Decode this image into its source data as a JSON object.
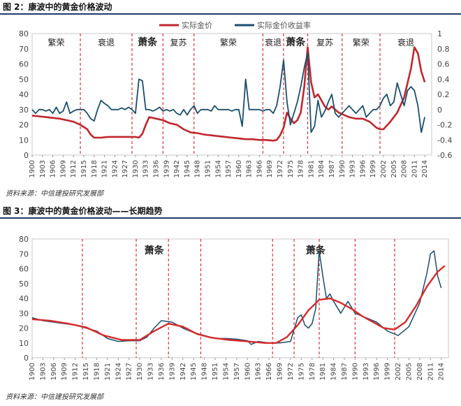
{
  "figure2": {
    "title": "图 2：康波中的黄金价格波动",
    "source": "资料来源：中信建投研究发展部"
  },
  "figure3": {
    "title": "图 3：康波中的黄金价格波动——长期趋势",
    "source": "资料来源：中信建投研究发展部"
  },
  "chart_data": [
    {
      "type": "line",
      "title": "",
      "legend_position": "top",
      "grid": false,
      "xlim": [
        1900,
        2016
      ],
      "ylim": [
        0,
        80
      ],
      "y2lim": [
        -0.6,
        1.0
      ],
      "x_ticks": [
        1900,
        1903,
        1906,
        1909,
        1912,
        1915,
        1918,
        1921,
        1924,
        1927,
        1930,
        1933,
        1936,
        1939,
        1942,
        1945,
        1948,
        1951,
        1954,
        1957,
        1960,
        1963,
        1966,
        1969,
        1972,
        1975,
        1978,
        1981,
        1984,
        1987,
        1990,
        1993,
        1996,
        1999,
        2002,
        2005,
        2008,
        2011,
        2014
      ],
      "y_ticks": [
        0,
        10,
        20,
        30,
        40,
        50,
        60,
        70,
        80
      ],
      "y2_ticks": [
        -0.6,
        -0.4,
        -0.2,
        0,
        0.2,
        0.4,
        0.6,
        0.8,
        1
      ],
      "colors": {
        "price": "#c0272d",
        "return": "#1a4e6e",
        "divider": "#d33"
      },
      "dividers": [
        1914,
        1929,
        1938,
        1947,
        1967,
        1973,
        1980,
        1990,
        2001
      ],
      "phases": [
        {
          "label": "繁荣",
          "x": 1907,
          "bold": false
        },
        {
          "label": "衰退",
          "x": 1921.5,
          "bold": false
        },
        {
          "label": "萧条",
          "x": 1933.5,
          "bold": true
        },
        {
          "label": "复苏",
          "x": 1942.5,
          "bold": false
        },
        {
          "label": "繁荣",
          "x": 1957,
          "bold": false
        },
        {
          "label": "衰退",
          "x": 1970,
          "bold": false
        },
        {
          "label": "萧条",
          "x": 1976.5,
          "bold": true
        },
        {
          "label": "复苏",
          "x": 1985,
          "bold": false
        },
        {
          "label": "繁荣",
          "x": 1995.5,
          "bold": false
        },
        {
          "label": "衰退",
          "x": 2008.5,
          "bold": false
        }
      ],
      "series": [
        {
          "name": "实际金价",
          "axis": "left",
          "x": [
            1900,
            1902,
            1904,
            1906,
            1908,
            1910,
            1912,
            1914,
            1916,
            1917,
            1918,
            1920,
            1922,
            1924,
            1926,
            1928,
            1930,
            1931,
            1932,
            1933,
            1934,
            1936,
            1938,
            1940,
            1942,
            1944,
            1946,
            1948,
            1950,
            1952,
            1954,
            1956,
            1958,
            1960,
            1962,
            1964,
            1966,
            1968,
            1970,
            1971,
            1972,
            1973,
            1974,
            1975,
            1976,
            1977,
            1978,
            1979,
            1980,
            1981,
            1982,
            1983,
            1984,
            1985,
            1986,
            1987,
            1988,
            1989,
            1990,
            1992,
            1994,
            1996,
            1998,
            2000,
            2001,
            2002,
            2004,
            2006,
            2008,
            2010,
            2011,
            2012,
            2013,
            2014
          ],
          "values": [
            26,
            25.5,
            25,
            24.5,
            24,
            23,
            22,
            20,
            17,
            13.5,
            11.5,
            11.5,
            12,
            12,
            12,
            12,
            12,
            11.5,
            14,
            20,
            25,
            24,
            23,
            21,
            20,
            17,
            15,
            14.5,
            13.5,
            13,
            12.5,
            12,
            11.5,
            11,
            10.5,
            10.5,
            10,
            10,
            9.5,
            10,
            13,
            18,
            28,
            24,
            21,
            23,
            28,
            45,
            71,
            48,
            38,
            40,
            36,
            32,
            30,
            32,
            30,
            28,
            27,
            25,
            24,
            24,
            22,
            18,
            17,
            17,
            22,
            28,
            38,
            57,
            71,
            67,
            55,
            48
          ]
        },
        {
          "name": "实际金价收益率",
          "axis": "right",
          "x": [
            1900,
            1901,
            1902,
            1903,
            1904,
            1905,
            1906,
            1907,
            1908,
            1909,
            1910,
            1911,
            1912,
            1913,
            1914,
            1915,
            1916,
            1917,
            1918,
            1919,
            1920,
            1921,
            1922,
            1923,
            1924,
            1925,
            1926,
            1927,
            1928,
            1929,
            1930,
            1931,
            1932,
            1933,
            1934,
            1935,
            1936,
            1937,
            1938,
            1939,
            1940,
            1941,
            1942,
            1943,
            1944,
            1945,
            1946,
            1947,
            1948,
            1949,
            1950,
            1951,
            1952,
            1953,
            1954,
            1955,
            1956,
            1957,
            1958,
            1959,
            1960,
            1961,
            1962,
            1963,
            1964,
            1965,
            1966,
            1967,
            1968,
            1969,
            1970,
            1971,
            1972,
            1973,
            1974,
            1975,
            1976,
            1977,
            1978,
            1979,
            1980,
            1981,
            1982,
            1983,
            1984,
            1985,
            1986,
            1987,
            1988,
            1989,
            1990,
            1991,
            1992,
            1993,
            1994,
            1995,
            1996,
            1997,
            1998,
            1999,
            2000,
            2001,
            2002,
            2003,
            2004,
            2005,
            2006,
            2007,
            2008,
            2009,
            2010,
            2011,
            2012,
            2013,
            2014
          ],
          "values": [
            0,
            -0.05,
            0,
            0,
            -0.02,
            0,
            -0.05,
            0.03,
            -0.05,
            -0.02,
            0.1,
            -0.05,
            -0.02,
            0,
            0,
            0,
            -0.05,
            -0.12,
            -0.15,
            0,
            0.12,
            0.08,
            0.05,
            0,
            0,
            0,
            0.02,
            0,
            0.03,
            0,
            -0.05,
            0.4,
            0.38,
            0,
            0,
            -0.02,
            0,
            0.03,
            -0.02,
            0,
            -0.02,
            0,
            -0.05,
            -0.07,
            0,
            -0.07,
            0,
            0.05,
            -0.05,
            0,
            0,
            0,
            -0.02,
            0.05,
            0,
            0,
            0,
            0,
            -0.02,
            0,
            0,
            -0.22,
            0.4,
            0,
            0,
            0,
            0,
            -0.02,
            0,
            0,
            -0.05,
            0.05,
            0.3,
            0.65,
            0.1,
            -0.2,
            -0.05,
            0.1,
            0.3,
            0.55,
            0.75,
            -0.3,
            -0.22,
            0.12,
            -0.1,
            -0.02,
            0.1,
            0.2,
            -0.05,
            -0.1,
            -0.05,
            0,
            0.05,
            0,
            -0.05,
            0,
            0.05,
            -0.1,
            -0.05,
            0,
            0,
            0.05,
            0.15,
            0.2,
            0.05,
            0.1,
            0.35,
            0.2,
            0.05,
            0.25,
            0.3,
            0.25,
            0.05,
            -0.3,
            -0.1
          ]
        }
      ]
    },
    {
      "type": "line",
      "title": "",
      "legend_position": "none",
      "grid": false,
      "xlim": [
        1900,
        2016
      ],
      "ylim": [
        0,
        80
      ],
      "x_ticks": [
        1900,
        1903,
        1906,
        1909,
        1912,
        1915,
        1918,
        1921,
        1924,
        1927,
        1930,
        1933,
        1936,
        1939,
        1942,
        1945,
        1948,
        1951,
        1954,
        1957,
        1960,
        1963,
        1966,
        1969,
        1972,
        1975,
        1978,
        1981,
        1984,
        1987,
        1990,
        1993,
        1996,
        1999,
        2002,
        2005,
        2008,
        2011,
        2014
      ],
      "y_ticks": [
        0,
        10,
        20,
        30,
        40,
        50,
        60,
        70,
        80
      ],
      "colors": {
        "price": "#1a4e6e",
        "trend": "#d62b2b",
        "divider": "#d33"
      },
      "dividers": [
        1914,
        1929,
        1938,
        1947,
        1967,
        1973,
        1980,
        1990,
        2001
      ],
      "phases": [
        {
          "label": "萧条",
          "x": 1934,
          "bold": true
        },
        {
          "label": "萧条",
          "x": 1979,
          "bold": true
        }
      ],
      "series": [
        {
          "name": "price",
          "x": [
            1900,
            1903,
            1906,
            1909,
            1912,
            1915,
            1918,
            1921,
            1924,
            1927,
            1930,
            1932,
            1934,
            1936,
            1939,
            1942,
            1945,
            1948,
            1951,
            1954,
            1957,
            1960,
            1961,
            1963,
            1966,
            1969,
            1972,
            1974,
            1975,
            1976,
            1977,
            1978,
            1979,
            1980,
            1981,
            1982,
            1983,
            1984,
            1986,
            1988,
            1990,
            1993,
            1996,
            1999,
            2002,
            2005,
            2008,
            2010,
            2011,
            2012,
            2013,
            2014
          ],
          "values": [
            27,
            25,
            24,
            23,
            22,
            20,
            18,
            13,
            11,
            11.5,
            11.5,
            14,
            20,
            25,
            24,
            20,
            17,
            15,
            13,
            13,
            12.5,
            11.5,
            9,
            11,
            10,
            10,
            11,
            27,
            29,
            22,
            20,
            23,
            33,
            72,
            55,
            40,
            43,
            38,
            30,
            38,
            30,
            27,
            24,
            18,
            15,
            21,
            37,
            57,
            70,
            72,
            55,
            47
          ]
        },
        {
          "name": "trend",
          "x": [
            1900,
            1905,
            1910,
            1915,
            1920,
            1925,
            1930,
            1934,
            1938,
            1942,
            1946,
            1950,
            1955,
            1960,
            1965,
            1968,
            1971,
            1974,
            1977,
            1980,
            1983,
            1986,
            1989,
            1992,
            1995,
            1998,
            2001,
            2004,
            2007,
            2010,
            2013,
            2015
          ],
          "values": [
            26,
            25,
            23,
            20.5,
            15,
            12,
            12,
            18,
            23,
            21,
            16,
            13.5,
            12,
            11,
            10,
            10,
            14,
            22,
            32,
            39,
            40,
            37,
            33,
            28,
            24,
            20,
            19,
            24,
            35,
            48,
            58,
            62
          ]
        }
      ]
    }
  ]
}
